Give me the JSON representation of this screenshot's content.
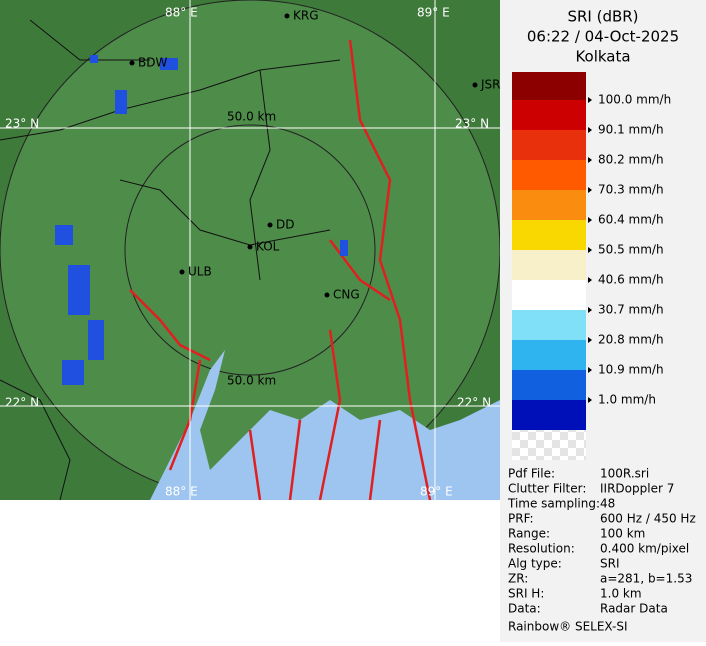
{
  "title": {
    "product": "SRI (dBR)",
    "time": "06:22 / 04-Oct-2025",
    "site": "Kolkata"
  },
  "map": {
    "grid_labels": {
      "lon1": "88° E",
      "lon2": "89° E",
      "lat1": "23° N",
      "lat2": "22° N"
    },
    "range_labels": [
      "50.0 km",
      "50.0 km"
    ],
    "cities": [
      "BDW",
      "KRG",
      "JSR",
      "DD",
      "KOL",
      "ULB",
      "CNG"
    ]
  },
  "legend": {
    "top_color": "#8c0000",
    "items": [
      {
        "label": "100.0 mm/h",
        "color": "#cc0000"
      },
      {
        "label": "90.1 mm/h",
        "color": "#e8300c"
      },
      {
        "label": "80.2 mm/h",
        "color": "#ff5a00"
      },
      {
        "label": "70.3 mm/h",
        "color": "#fa8c10"
      },
      {
        "label": "60.4 mm/h",
        "color": "#f8d800"
      },
      {
        "label": "50.5 mm/h",
        "color": "#f8f0c8"
      },
      {
        "label": "40.6 mm/h",
        "color": "#ffffff"
      },
      {
        "label": "30.7 mm/h",
        "color": "#80e0f8"
      },
      {
        "label": "20.8 mm/h",
        "color": "#30b4f0"
      },
      {
        "label": "10.9 mm/h",
        "color": "#1060e0"
      },
      {
        "label": "1.0 mm/h",
        "color": "#0010b8"
      }
    ]
  },
  "info": {
    "rows": [
      [
        "Pdf File:",
        "100R.sri"
      ],
      [
        "Clutter Filter:",
        "IIRDoppler 7"
      ],
      [
        "Time sampling:",
        "48"
      ],
      [
        "PRF:",
        "600 Hz / 450 Hz"
      ],
      [
        "Range:",
        "100 km"
      ],
      [
        "Resolution:",
        "0.400 km/pixel"
      ],
      [
        "Alg type:",
        "SRI"
      ],
      [
        "ZR:",
        "a=281, b=1.53"
      ],
      [
        "SRI H:",
        "1.0 km"
      ],
      [
        "Data:",
        "Radar Data"
      ]
    ],
    "footer": "Rainbow® SELEX-SI"
  }
}
